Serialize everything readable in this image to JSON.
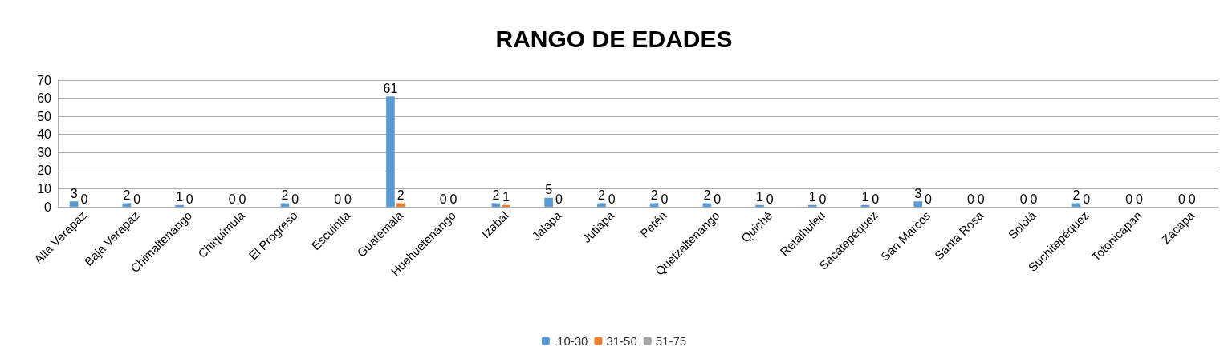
{
  "chart_data": {
    "type": "bar",
    "title": "RANGO DE EDADES",
    "categories": [
      "Alta Verapaz",
      "Baja Verapaz",
      "Chimaltenango",
      "Chiquimula",
      "El Progreso",
      "Escuintla",
      "Guatemala",
      "Huehuetenango",
      "Izabal",
      "Jalapa",
      "Jutiapa",
      "Petén",
      "Quetzaltenango",
      "Quiché",
      "Retalhuleu",
      "Sacatepéquez",
      "San Marcos",
      "Santa Rosa",
      "Sololá",
      "Suchitepéquez",
      "Totonicapan",
      "Zacapa"
    ],
    "series": [
      {
        "name": ".10-30",
        "color": "#5b9bd5",
        "values": [
          3,
          2,
          1,
          0,
          2,
          0,
          61,
          0,
          2,
          5,
          2,
          2,
          2,
          1,
          1,
          1,
          3,
          0,
          0,
          2,
          0,
          0
        ],
        "value_labels": [
          "3",
          "2",
          "1",
          "0",
          "2",
          "0",
          "61",
          "0",
          "2",
          "5",
          "2",
          "2",
          "2",
          "1",
          "1",
          "1",
          "3",
          "0",
          "0",
          "2",
          "0",
          "0"
        ]
      },
      {
        "name": "31-50",
        "color": "#ed7d31",
        "values": [
          0,
          0,
          0,
          0,
          0,
          0,
          2,
          0,
          1,
          0,
          0,
          0,
          0,
          0,
          0,
          0,
          0,
          0,
          0,
          0,
          0,
          0
        ],
        "value_labels": [
          "0",
          "0",
          "0",
          "0",
          "0",
          "0",
          "2",
          "0",
          "1",
          "0",
          "0",
          "0",
          "0",
          "0",
          "0",
          "0",
          "0",
          "0",
          "0",
          "0",
          "0",
          "0"
        ]
      },
      {
        "name": "51-75",
        "color": "#a5a5a5",
        "values": [
          0,
          0,
          0,
          0,
          0,
          0,
          0,
          0,
          0,
          0,
          0,
          0,
          0,
          0,
          0,
          0,
          0,
          0,
          0,
          0,
          0,
          0
        ],
        "value_labels": [
          null,
          null,
          null,
          null,
          null,
          null,
          null,
          null,
          null,
          null,
          null,
          null,
          null,
          null,
          null,
          null,
          null,
          null,
          null,
          null,
          null,
          null
        ]
      }
    ],
    "ylim": [
      0,
      70
    ],
    "yticks": [
      0,
      10,
      20,
      30,
      40,
      50,
      60,
      70
    ],
    "grid": "y",
    "legend": "bottom"
  }
}
